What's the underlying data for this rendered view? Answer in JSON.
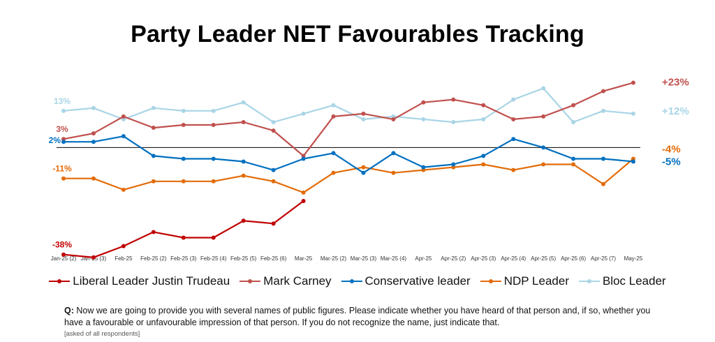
{
  "chart_data": {
    "type": "line",
    "title": "Party Leader NET Favourables Tracking",
    "categories": [
      "Jan-25 (2)",
      "Jan-25 (3)",
      "Feb-25",
      "Feb-25 (2)",
      "Feb-25 (3)",
      "Feb-25 (4)",
      "Feb-25 (5)",
      "Feb-25 (6)",
      "Mar-25",
      "Mar-25 (2)",
      "Mar-25 (3)",
      "Mar-25 (4)",
      "Apr-25",
      "Apr-25 (2)",
      "Apr-25 (3)",
      "Apr-25 (4)",
      "Apr-25 (5)",
      "Apr-25 (6)",
      "Apr-25 (7)",
      "May-25"
    ],
    "ylim": [
      -45,
      35
    ],
    "grid": false,
    "legend_position": "bottom",
    "series": [
      {
        "name": "Liberal Leader Justin Trudeau",
        "color": "#C00000",
        "values": [
          -38,
          -39,
          -35,
          -30,
          -32,
          -32,
          -26,
          -27,
          -19,
          null,
          null,
          null,
          null,
          null,
          null,
          null,
          null,
          null,
          null,
          null
        ],
        "start_label": "-38%",
        "end_label": ""
      },
      {
        "name": "Mark Carney",
        "color": "#C0504D",
        "values": [
          3,
          5,
          11,
          7,
          8,
          8,
          9,
          6,
          -3,
          11,
          12,
          10,
          16,
          17,
          15,
          10,
          11,
          15,
          20,
          23
        ],
        "start_label": "3%",
        "end_label": "+23%"
      },
      {
        "name": "Conservative leader",
        "color": "#0070C0",
        "values": [
          2,
          2,
          4,
          -3,
          -4,
          -4,
          -5,
          -8,
          -4,
          -2,
          -9,
          -2,
          -7,
          -6,
          -3,
          3,
          0,
          -4,
          -4,
          -5
        ],
        "start_label": "2%",
        "end_label": "-5%"
      },
      {
        "name": "NDP Leader",
        "color": "#E36C09",
        "values": [
          -11,
          -11,
          -15,
          -12,
          -12,
          -12,
          -10,
          -12,
          -16,
          -9,
          -7,
          -9,
          -8,
          -7,
          -6,
          -8,
          -6,
          -6,
          -13,
          -4
        ],
        "start_label": "-11%",
        "end_label": "-4%"
      },
      {
        "name": "Bloc Leader",
        "color": "#A9D5E6",
        "values": [
          13,
          14,
          10,
          14,
          13,
          13,
          16,
          9,
          12,
          15,
          10,
          11,
          10,
          9,
          10,
          17,
          21,
          9,
          13,
          12
        ],
        "start_label": "13%",
        "end_label": "+12%"
      }
    ]
  },
  "question": {
    "prefix": "Q:",
    "text": "Now we are going to provide you with several names of public figures.  Please indicate whether you have heard of that person and, if so, whether you have a favourable or unfavourable impression of that person. If you do not recognize the name, just indicate that.",
    "note": "[asked of all respondents]"
  }
}
